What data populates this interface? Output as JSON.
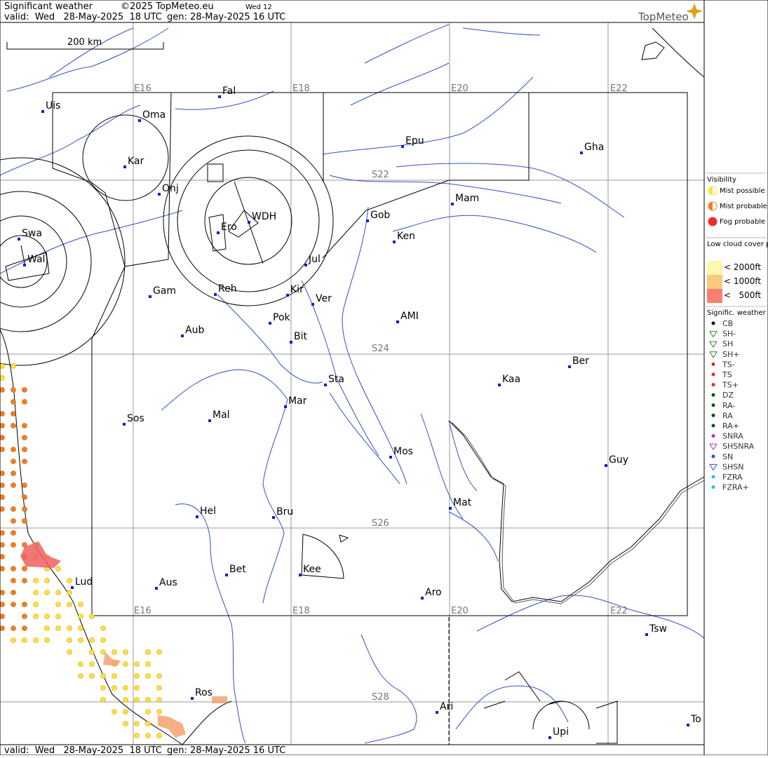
{
  "header": {
    "title": "Significant weather",
    "copyright": "©2025 TopMeteo.eu",
    "day": "Wed 12",
    "valid": "valid:  Wed   28-May-2025  18 UTC",
    "generated": "gen: 28-May-2025 16 UTC",
    "logo": "TopMeteo"
  },
  "scale": "200 km",
  "grid": {
    "lon_top": [
      "E16",
      "E18",
      "E20",
      "E22"
    ],
    "lon_bottom": [
      "E16",
      "E18",
      "E20",
      "E22"
    ],
    "lat": [
      "S22",
      "S24",
      "S26",
      "S28"
    ]
  },
  "places": [
    "Uis",
    "Fal",
    "Oma",
    "Kar",
    "Epu",
    "Gha",
    "Onj",
    "Mam",
    "Gob",
    "WDH",
    "Ero",
    "Ken",
    "Swa",
    "Jul",
    "Wal",
    "Gam",
    "Reh",
    "Kir",
    "Ver",
    "AMI",
    "Pok",
    "Aub",
    "Bit",
    "Ber",
    "Sta",
    "Kaa",
    "Mar",
    "Sos",
    "Mal",
    "Mos",
    "Guy",
    "Mat",
    "Hel",
    "Bru",
    "Bet",
    "Kee",
    "Lud",
    "Aus",
    "Aro",
    "Tsw",
    "Ros",
    "Ari",
    "To",
    "Upi"
  ],
  "legend": {
    "visibility": {
      "title": "Visibility",
      "items": [
        "Mist possible",
        "Mist probable",
        "Fog probable"
      ]
    },
    "low_cloud": {
      "title": "Low cloud cover probable",
      "items": [
        "< 2000ft",
        "< 1000ft",
        "<   500ft"
      ]
    },
    "weather": {
      "title": "Signific. weather",
      "items": [
        "CB",
        "SH-",
        "SH",
        "SH+",
        "TS-",
        "TS",
        "TS+",
        "DZ",
        "RA-",
        "RA",
        "RA+",
        "SNRA",
        "SHSNRA",
        "SN",
        "SHSN",
        "FZRA",
        "FZRA+"
      ]
    }
  },
  "footer": {
    "valid": "valid:  Wed   28-May-2025  18 UTC",
    "generated": "gen: 28-May-2025 16 UTC"
  }
}
